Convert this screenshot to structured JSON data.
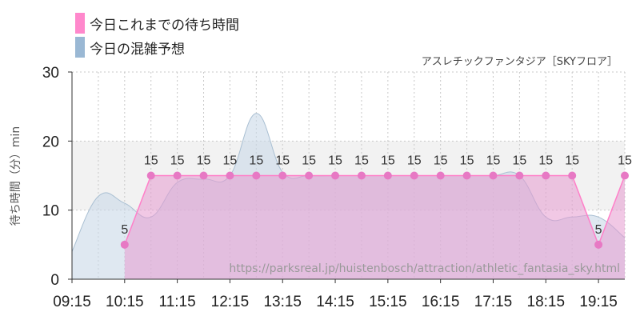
{
  "legend": [
    {
      "label": "今日これまでの待ち時間",
      "color": "#ff88cc"
    },
    {
      "label": "今日の混雑予想",
      "color": "#9ab8d4"
    }
  ],
  "subtitle": "アスレチックファンタジア［SKYフロア］",
  "watermark": "https://parksreal.jp/huistenbosch/attraction/athletic_fantasia_sky.html",
  "colors": {
    "actual_line": "#ff7fc8",
    "actual_fill": "#e59ad0",
    "actual_point": "#e779c4",
    "forecast_line": "#a9bfd2",
    "forecast_fill": "#c9d9e8",
    "band": "#f2f2f2",
    "grid": "#c8c8c8"
  },
  "chart_data": {
    "type": "area",
    "xlabel": "",
    "ylabel": "待ち時間（分）min",
    "ylim": [
      0,
      30
    ],
    "yticks": [
      0,
      10,
      20,
      30
    ],
    "highlight_band": [
      10,
      20
    ],
    "x_tick_labels": [
      "09:15",
      "10:15",
      "11:15",
      "12:15",
      "13:15",
      "14:15",
      "15:15",
      "16:15",
      "17:15",
      "18:15",
      "19:15"
    ],
    "x_tick_times": [
      "09:15",
      "10:15",
      "11:15",
      "12:15",
      "13:15",
      "14:15",
      "15:15",
      "16:15",
      "17:15",
      "18:15",
      "19:15"
    ],
    "x_range": [
      "09:15",
      "19:45"
    ],
    "series": [
      {
        "name": "今日の混雑予想",
        "x": [
          "09:15",
          "09:45",
          "10:15",
          "10:45",
          "11:15",
          "11:45",
          "12:15",
          "12:45",
          "13:15",
          "13:45",
          "14:15",
          "14:45",
          "15:15",
          "15:45",
          "16:15",
          "16:45",
          "17:15",
          "17:45",
          "18:15",
          "18:45",
          "19:15",
          "19:45"
        ],
        "y": [
          4,
          12,
          11,
          9,
          14,
          14.5,
          15,
          24,
          15.5,
          15,
          15,
          15,
          15,
          15,
          15,
          15,
          15,
          15,
          9,
          9,
          9,
          6
        ]
      },
      {
        "name": "今日これまでの待ち時間",
        "x": [
          "10:15",
          "10:45",
          "11:15",
          "11:45",
          "12:15",
          "12:45",
          "13:15",
          "13:45",
          "14:15",
          "14:45",
          "15:15",
          "15:45",
          "16:15",
          "16:45",
          "17:15",
          "17:45",
          "18:15",
          "18:45",
          "19:15",
          "19:45"
        ],
        "y": [
          5,
          15,
          15,
          15,
          15,
          15,
          15,
          15,
          15,
          15,
          15,
          15,
          15,
          15,
          15,
          15,
          15,
          15,
          5,
          15
        ],
        "labels": [
          "5",
          "15",
          "15",
          "15",
          "15",
          "15",
          "15",
          "15",
          "15",
          "15",
          "15",
          "15",
          "15",
          "15",
          "15",
          "15",
          "15",
          "15",
          "5",
          "15"
        ]
      }
    ]
  }
}
